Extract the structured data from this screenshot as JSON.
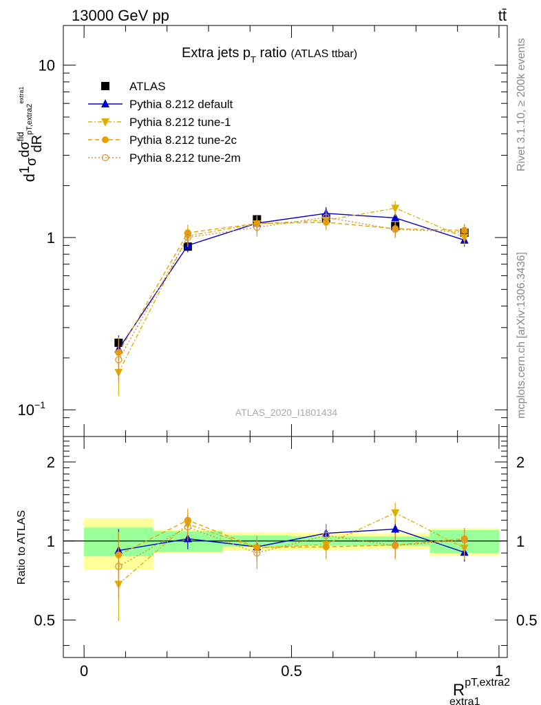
{
  "header": {
    "energy_label": "13000 GeV pp",
    "process_label": "tt̄"
  },
  "side_labels": {
    "rivet": "Rivet 3.1.10, ≥ 200k events",
    "mcplots": "mcplots.cern.ch [arXiv:1306.3436]"
  },
  "chart_data": {
    "type": "line",
    "title": "Extra jets p",
    "title_sub": "T",
    "title_tail": " ratio",
    "title_note": "(ATLAS ttbar)",
    "analysis_label": "ATLAS_2020_I1801434",
    "xlabel": "R",
    "xlabel_sup": "pT,extra2",
    "xlabel_sub": "extra1",
    "ylabel": "d",
    "ylabel_parts": [
      "1",
      "σ",
      "dσ",
      "fid",
      "dR",
      "pT,extra2",
      "extra1"
    ],
    "ratio_ylabel": "Ratio to ATLAS",
    "xlim": [
      -0.05,
      1.02
    ],
    "ylim": [
      0.07,
      17
    ],
    "yscale": "log",
    "ratio_ylim": [
      0.36,
      2.5
    ],
    "ratio_yscale": "log",
    "x_ticks": [
      "0",
      "0.5",
      "1"
    ],
    "x_tick_values": [
      0,
      0.5,
      1
    ],
    "y_ticks": [
      "10^-1",
      "1",
      "10"
    ],
    "y_tick_values": [
      0.1,
      1,
      10
    ],
    "ratio_y_ticks": [
      "0.5",
      "1",
      "2"
    ],
    "ratio_y_tick_values": [
      0.5,
      1,
      2
    ],
    "bin_edges": [
      0,
      0.1667,
      0.3333,
      0.5,
      0.6667,
      0.8333,
      1.0
    ],
    "x": [
      0.0833,
      0.25,
      0.4167,
      0.5833,
      0.75,
      0.9167
    ],
    "series": [
      {
        "name": "ATLAS",
        "color": "#000000",
        "marker": "square",
        "values": [
          0.245,
          0.885,
          1.275,
          1.29,
          1.165,
          1.065
        ],
        "ratio": [
          1,
          1,
          1,
          1,
          1,
          1
        ],
        "ratio_band_inner": [
          0.125,
          0.09,
          0.05,
          0.04,
          0.04,
          0.1
        ],
        "ratio_band_outer": [
          0.22,
          0.1,
          0.08,
          0.075,
          0.07,
          0.12
        ]
      },
      {
        "name": "Pythia 8.212 default",
        "color": "#0000cc",
        "marker": "triangle-up",
        "values": [
          0.225,
          0.9,
          1.21,
          1.38,
          1.3,
          0.965
        ],
        "errors": [
          0.045,
          0.08,
          0.12,
          0.12,
          0.12,
          0.08
        ],
        "ratio": [
          0.92,
          1.02,
          0.95,
          1.07,
          1.11,
          0.905
        ],
        "ratio_errors": [
          0.19,
          0.09,
          0.09,
          0.09,
          0.1,
          0.07
        ]
      },
      {
        "name": "Pythia 8.212 tune-1",
        "color": "#e0b000",
        "marker": "triangle-down",
        "values": [
          0.165,
          1.02,
          1.2,
          1.26,
          1.48,
          1.0
        ],
        "errors": [
          0.045,
          0.12,
          0.14,
          0.14,
          0.15,
          0.1
        ],
        "ratio": [
          0.685,
          1.16,
          0.94,
          0.97,
          1.28,
          0.94
        ],
        "ratio_errors": [
          0.19,
          0.12,
          0.1,
          0.1,
          0.12,
          0.09
        ]
      },
      {
        "name": "Pythia 8.212 tune-2c",
        "color": "#e8a000",
        "marker": "circle",
        "values": [
          0.215,
          1.065,
          1.205,
          1.225,
          1.125,
          1.1
        ],
        "errors": [
          0.05,
          0.12,
          0.13,
          0.12,
          0.12,
          0.1
        ],
        "ratio": [
          0.885,
          1.2,
          0.945,
          0.95,
          0.965,
          1.02
        ],
        "ratio_errors": [
          0.2,
          0.13,
          0.1,
          0.1,
          0.1,
          0.1
        ]
      },
      {
        "name": "Pythia 8.212 tune-2m",
        "color": "#d89030",
        "marker": "open-circle",
        "values": [
          0.195,
          1.0,
          1.145,
          1.31,
          1.115,
          1.075
        ],
        "errors": [
          0.05,
          0.12,
          0.13,
          0.13,
          0.12,
          0.11
        ],
        "ratio": [
          0.8,
          1.13,
          0.9,
          1.05,
          0.96,
          1.01
        ],
        "ratio_errors": [
          0.2,
          0.13,
          0.12,
          0.11,
          0.11,
          0.1
        ]
      }
    ],
    "legend_placement": "top-left",
    "grid": false
  }
}
